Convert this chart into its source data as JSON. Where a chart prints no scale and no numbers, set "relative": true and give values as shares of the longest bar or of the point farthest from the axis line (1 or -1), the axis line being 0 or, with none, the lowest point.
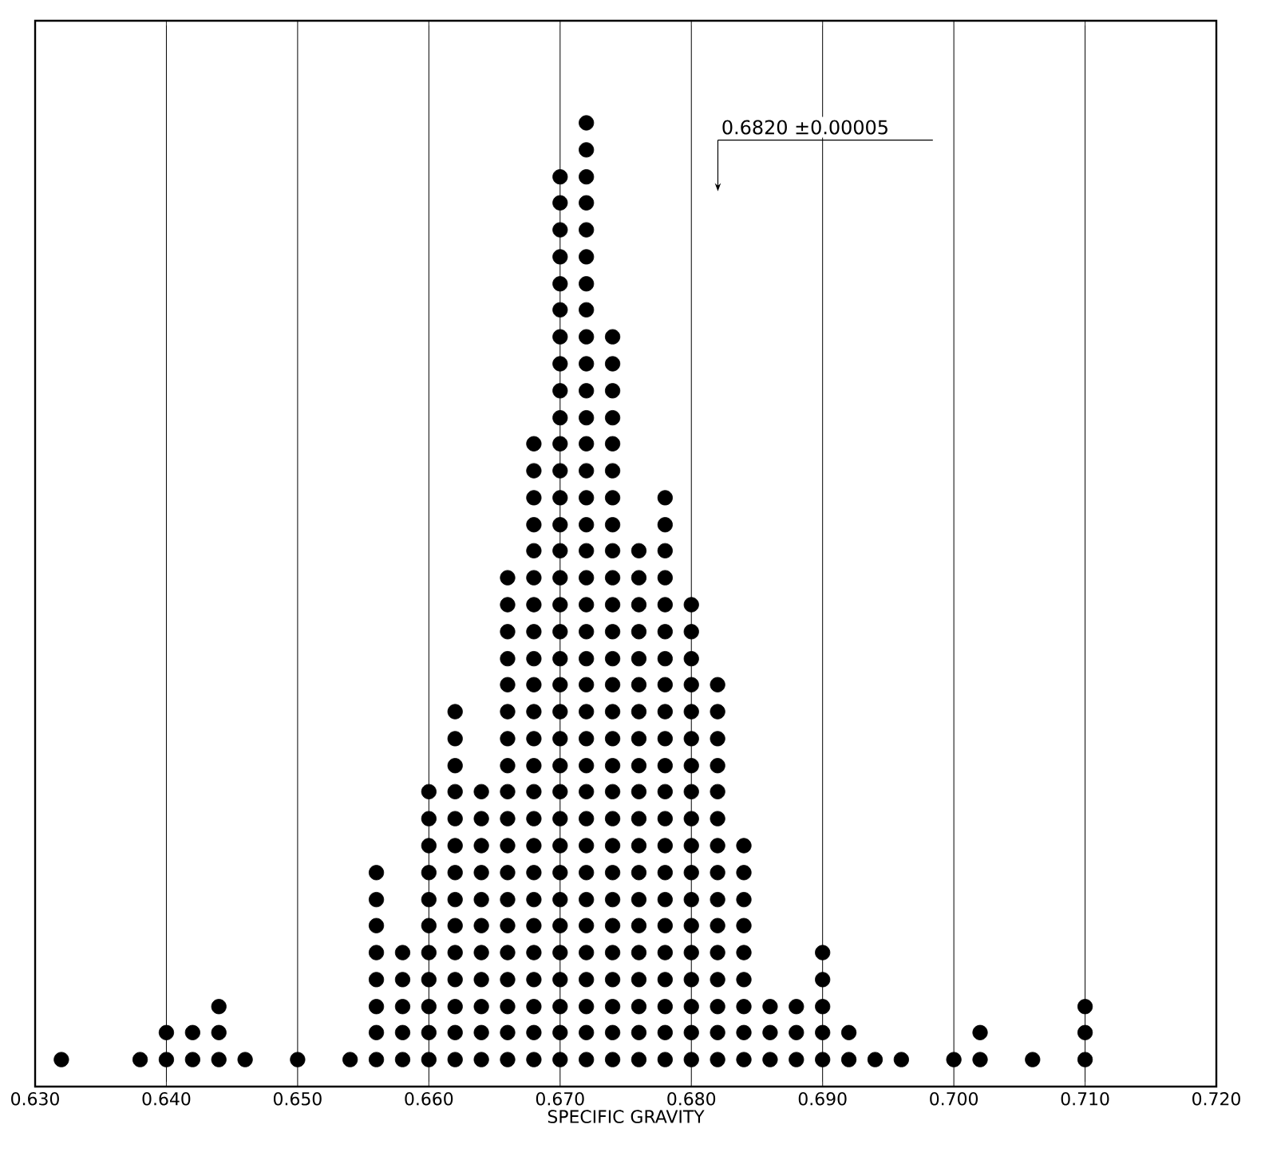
{
  "chart_data": {
    "type": "scatter",
    "relative": true,
    "xlabel": "SPECIFIC GRAVITY",
    "grid": "x",
    "marker": "circle",
    "tick_labels": "x",
    "xlim": [
      0.63,
      0.72
    ],
    "xticks": [
      {
        "value": 0.63,
        "label": "0.630"
      },
      {
        "value": 0.64,
        "label": "0.640"
      },
      {
        "value": 0.65,
        "label": "0.650"
      },
      {
        "value": 0.66,
        "label": "0.660"
      },
      {
        "value": 0.67,
        "label": "0.670"
      },
      {
        "value": 0.68,
        "label": "0.680"
      },
      {
        "value": 0.69,
        "label": "0.690"
      },
      {
        "value": 0.7,
        "label": "0.700"
      },
      {
        "value": 0.71,
        "label": "0.710"
      },
      {
        "value": 0.72,
        "label": "0.720"
      }
    ],
    "annotations": [
      "0.6820 ±0.00005"
    ],
    "series": [
      {
        "color": "#000000",
        "x": [
          0.632
        ],
        "values": [
          0.028
        ]
      },
      {
        "color": "#000000",
        "x": [
          0.638
        ],
        "values": [
          0.028
        ]
      },
      {
        "color": "#000000",
        "x": [
          0.64,
          0.64
        ],
        "values": [
          0.028,
          0.056
        ]
      },
      {
        "color": "#000000",
        "x": [
          0.642,
          0.642
        ],
        "values": [
          0.028,
          0.056
        ]
      },
      {
        "color": "#000000",
        "x": [
          0.644,
          0.644,
          0.644
        ],
        "values": [
          0.028,
          0.056,
          0.083
        ]
      },
      {
        "color": "#000000",
        "x": [
          0.646
        ],
        "values": [
          0.028
        ]
      },
      {
        "color": "#000000",
        "x": [
          0.65
        ],
        "values": [
          0.028
        ]
      },
      {
        "color": "#000000",
        "x": [
          0.654
        ],
        "values": [
          0.028
        ]
      },
      {
        "color": "#000000",
        "x": [
          0.656,
          0.656,
          0.656,
          0.656,
          0.656,
          0.656,
          0.656,
          0.656
        ],
        "values": [
          0.028,
          0.056,
          0.083,
          0.111,
          0.139,
          0.167,
          0.194,
          0.222
        ]
      },
      {
        "color": "#000000",
        "x": [
          0.658,
          0.658,
          0.658,
          0.658,
          0.658
        ],
        "values": [
          0.028,
          0.056,
          0.083,
          0.111,
          0.139
        ]
      },
      {
        "color": "#000000",
        "x": [
          0.66,
          0.66,
          0.66,
          0.66,
          0.66,
          0.66,
          0.66,
          0.66,
          0.66,
          0.66,
          0.66
        ],
        "values": [
          0.028,
          0.056,
          0.083,
          0.111,
          0.139,
          0.167,
          0.194,
          0.222,
          0.25,
          0.278,
          0.306
        ]
      },
      {
        "color": "#000000",
        "x": [
          0.662,
          0.662,
          0.662,
          0.662,
          0.662,
          0.662,
          0.662,
          0.662,
          0.662,
          0.662,
          0.662,
          0.662,
          0.662,
          0.662
        ],
        "values": [
          0.028,
          0.056,
          0.083,
          0.111,
          0.139,
          0.167,
          0.194,
          0.222,
          0.25,
          0.278,
          0.306,
          0.333,
          0.361,
          0.389
        ]
      },
      {
        "color": "#000000",
        "x": [
          0.664,
          0.664,
          0.664,
          0.664,
          0.664,
          0.664,
          0.664,
          0.664,
          0.664,
          0.664,
          0.664
        ],
        "values": [
          0.028,
          0.056,
          0.083,
          0.111,
          0.139,
          0.167,
          0.194,
          0.222,
          0.25,
          0.278,
          0.306
        ]
      },
      {
        "color": "#000000",
        "x": [
          0.666,
          0.666,
          0.666,
          0.666,
          0.666,
          0.666,
          0.666,
          0.666,
          0.666,
          0.666,
          0.666,
          0.666,
          0.666,
          0.666,
          0.666,
          0.666,
          0.666,
          0.666,
          0.666
        ],
        "values": [
          0.028,
          0.056,
          0.083,
          0.111,
          0.139,
          0.167,
          0.194,
          0.222,
          0.25,
          0.278,
          0.306,
          0.333,
          0.361,
          0.389,
          0.417,
          0.444,
          0.472,
          0.5,
          0.528
        ]
      },
      {
        "color": "#000000",
        "x": [
          0.668,
          0.668,
          0.668,
          0.668,
          0.668,
          0.668,
          0.668,
          0.668,
          0.668,
          0.668,
          0.668,
          0.668,
          0.668,
          0.668,
          0.668,
          0.668,
          0.668,
          0.668,
          0.668,
          0.668,
          0.668,
          0.668,
          0.668,
          0.668
        ],
        "values": [
          0.028,
          0.056,
          0.083,
          0.111,
          0.139,
          0.167,
          0.194,
          0.222,
          0.25,
          0.278,
          0.306,
          0.333,
          0.361,
          0.389,
          0.417,
          0.444,
          0.472,
          0.5,
          0.528,
          0.556,
          0.583,
          0.611,
          0.639,
          0.667
        ]
      },
      {
        "color": "#000000",
        "x": [
          0.67,
          0.67,
          0.67,
          0.67,
          0.67,
          0.67,
          0.67,
          0.67,
          0.67,
          0.67,
          0.67,
          0.67,
          0.67,
          0.67,
          0.67,
          0.67,
          0.67,
          0.67,
          0.67,
          0.67,
          0.67,
          0.67,
          0.67,
          0.67,
          0.67,
          0.67,
          0.67,
          0.67,
          0.67,
          0.67,
          0.67,
          0.67,
          0.67,
          0.67
        ],
        "values": [
          0.028,
          0.056,
          0.083,
          0.111,
          0.139,
          0.167,
          0.194,
          0.222,
          0.25,
          0.278,
          0.306,
          0.333,
          0.361,
          0.389,
          0.417,
          0.444,
          0.472,
          0.5,
          0.528,
          0.556,
          0.583,
          0.611,
          0.639,
          0.667,
          0.694,
          0.722,
          0.75,
          0.778,
          0.806,
          0.833,
          0.861,
          0.889,
          0.917,
          0.944
        ]
      },
      {
        "color": "#000000",
        "x": [
          0.672,
          0.672,
          0.672,
          0.672,
          0.672,
          0.672,
          0.672,
          0.672,
          0.672,
          0.672,
          0.672,
          0.672,
          0.672,
          0.672,
          0.672,
          0.672,
          0.672,
          0.672,
          0.672,
          0.672,
          0.672,
          0.672,
          0.672,
          0.672,
          0.672,
          0.672,
          0.672,
          0.672,
          0.672,
          0.672,
          0.672,
          0.672,
          0.672,
          0.672,
          0.672,
          0.672
        ],
        "values": [
          0.028,
          0.056,
          0.083,
          0.111,
          0.139,
          0.167,
          0.194,
          0.222,
          0.25,
          0.278,
          0.306,
          0.333,
          0.361,
          0.389,
          0.417,
          0.444,
          0.472,
          0.5,
          0.528,
          0.556,
          0.583,
          0.611,
          0.639,
          0.667,
          0.694,
          0.722,
          0.75,
          0.778,
          0.806,
          0.833,
          0.861,
          0.889,
          0.917,
          0.944,
          0.972,
          1
        ]
      },
      {
        "color": "#000000",
        "x": [
          0.674,
          0.674,
          0.674,
          0.674,
          0.674,
          0.674,
          0.674,
          0.674,
          0.674,
          0.674,
          0.674,
          0.674,
          0.674,
          0.674,
          0.674,
          0.674,
          0.674,
          0.674,
          0.674,
          0.674,
          0.674,
          0.674,
          0.674,
          0.674,
          0.674,
          0.674,
          0.674,
          0.674
        ],
        "values": [
          0.028,
          0.056,
          0.083,
          0.111,
          0.139,
          0.167,
          0.194,
          0.222,
          0.25,
          0.278,
          0.306,
          0.333,
          0.361,
          0.389,
          0.417,
          0.444,
          0.472,
          0.5,
          0.528,
          0.556,
          0.583,
          0.611,
          0.639,
          0.667,
          0.694,
          0.722,
          0.75,
          0.778
        ]
      },
      {
        "color": "#000000",
        "x": [
          0.676,
          0.676,
          0.676,
          0.676,
          0.676,
          0.676,
          0.676,
          0.676,
          0.676,
          0.676,
          0.676,
          0.676,
          0.676,
          0.676,
          0.676,
          0.676,
          0.676,
          0.676,
          0.676,
          0.676
        ],
        "values": [
          0.028,
          0.056,
          0.083,
          0.111,
          0.139,
          0.167,
          0.194,
          0.222,
          0.25,
          0.278,
          0.306,
          0.333,
          0.361,
          0.389,
          0.417,
          0.444,
          0.472,
          0.5,
          0.528,
          0.556
        ]
      },
      {
        "color": "#000000",
        "x": [
          0.678,
          0.678,
          0.678,
          0.678,
          0.678,
          0.678,
          0.678,
          0.678,
          0.678,
          0.678,
          0.678,
          0.678,
          0.678,
          0.678,
          0.678,
          0.678,
          0.678,
          0.678,
          0.678,
          0.678,
          0.678,
          0.678
        ],
        "values": [
          0.028,
          0.056,
          0.083,
          0.111,
          0.139,
          0.167,
          0.194,
          0.222,
          0.25,
          0.278,
          0.306,
          0.333,
          0.361,
          0.389,
          0.417,
          0.444,
          0.472,
          0.5,
          0.528,
          0.556,
          0.583,
          0.611
        ]
      },
      {
        "color": "#000000",
        "x": [
          0.68,
          0.68,
          0.68,
          0.68,
          0.68,
          0.68,
          0.68,
          0.68,
          0.68,
          0.68,
          0.68,
          0.68,
          0.68,
          0.68,
          0.68,
          0.68,
          0.68,
          0.68
        ],
        "values": [
          0.028,
          0.056,
          0.083,
          0.111,
          0.139,
          0.167,
          0.194,
          0.222,
          0.25,
          0.278,
          0.306,
          0.333,
          0.361,
          0.389,
          0.417,
          0.444,
          0.472,
          0.5
        ]
      },
      {
        "color": "#000000",
        "x": [
          0.682,
          0.682,
          0.682,
          0.682,
          0.682,
          0.682,
          0.682,
          0.682,
          0.682,
          0.682,
          0.682,
          0.682,
          0.682,
          0.682,
          0.682
        ],
        "values": [
          0.028,
          0.056,
          0.083,
          0.111,
          0.139,
          0.167,
          0.194,
          0.222,
          0.25,
          0.278,
          0.306,
          0.333,
          0.361,
          0.389,
          0.417
        ]
      },
      {
        "color": "#000000",
        "x": [
          0.684,
          0.684,
          0.684,
          0.684,
          0.684,
          0.684,
          0.684,
          0.684,
          0.684
        ],
        "values": [
          0.028,
          0.056,
          0.083,
          0.111,
          0.139,
          0.167,
          0.194,
          0.222,
          0.25
        ]
      },
      {
        "color": "#000000",
        "x": [
          0.686,
          0.686,
          0.686
        ],
        "values": [
          0.028,
          0.056,
          0.083
        ]
      },
      {
        "color": "#000000",
        "x": [
          0.688,
          0.688,
          0.688
        ],
        "values": [
          0.028,
          0.056,
          0.083
        ]
      },
      {
        "color": "#000000",
        "x": [
          0.69,
          0.69,
          0.69,
          0.69,
          0.69
        ],
        "values": [
          0.028,
          0.056,
          0.083,
          0.111,
          0.139
        ]
      },
      {
        "color": "#000000",
        "x": [
          0.692,
          0.692
        ],
        "values": [
          0.028,
          0.056
        ]
      },
      {
        "color": "#000000",
        "x": [
          0.694
        ],
        "values": [
          0.028
        ]
      },
      {
        "color": "#000000",
        "x": [
          0.696
        ],
        "values": [
          0.028
        ]
      },
      {
        "color": "#000000",
        "x": [
          0.7
        ],
        "values": [
          0.028
        ]
      },
      {
        "color": "#000000",
        "x": [
          0.702,
          0.702
        ],
        "values": [
          0.028,
          0.056
        ]
      },
      {
        "color": "#000000",
        "x": [
          0.706
        ],
        "values": [
          0.028
        ]
      },
      {
        "color": "#000000",
        "x": [
          0.71,
          0.71,
          0.71
        ],
        "values": [
          0.028,
          0.056,
          0.083
        ]
      }
    ]
  }
}
